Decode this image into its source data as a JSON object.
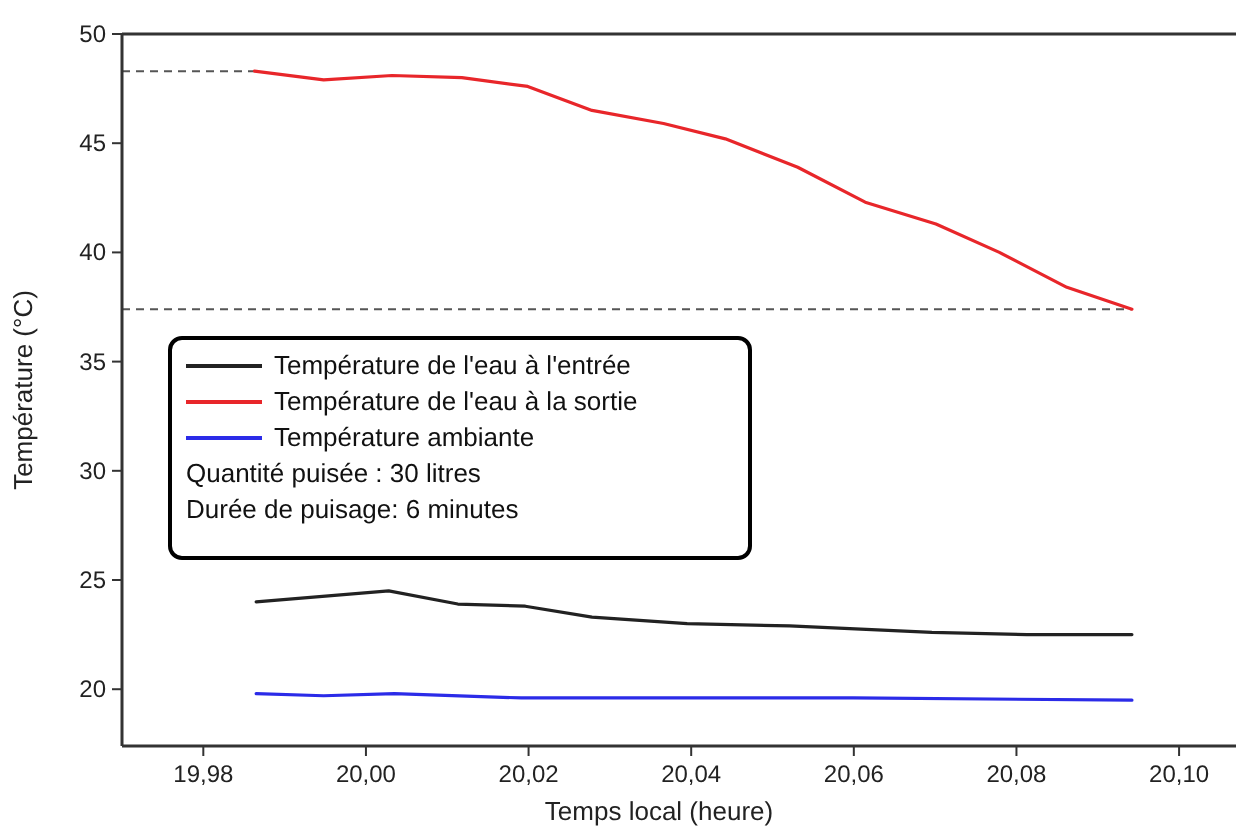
{
  "chart_data": {
    "type": "line",
    "xlabel": "Temps local (heure)",
    "ylabel": "Température (°C)",
    "xlim": [
      19.97,
      20.107
    ],
    "ylim": [
      17.4,
      50
    ],
    "xticks": [
      {
        "value": 19.98,
        "label": "19,98"
      },
      {
        "value": 20.0,
        "label": "20,00"
      },
      {
        "value": 20.02,
        "label": "20,02"
      },
      {
        "value": 20.04,
        "label": "20,04"
      },
      {
        "value": 20.06,
        "label": "20,06"
      },
      {
        "value": 20.08,
        "label": "20,08"
      },
      {
        "value": 20.1,
        "label": "20,10"
      }
    ],
    "yticks": [
      20,
      25,
      30,
      35,
      40,
      45,
      50
    ],
    "grid": false,
    "legend": "left",
    "line_style": "solid",
    "marker": "none",
    "series": [
      {
        "name": "Température de l'eau à l'entrée",
        "color": "#222222",
        "x": [
          19.9865,
          20.0028,
          20.0113,
          20.0196,
          20.0278,
          20.0395,
          20.0521,
          20.0696,
          20.0813,
          20.0942
        ],
        "values": [
          24.0,
          24.5,
          23.9,
          23.8,
          23.3,
          23.0,
          22.9,
          22.6,
          22.5,
          22.5
        ]
      },
      {
        "name": "Température de l'eau à la sortie",
        "color": "#e8262a",
        "x": [
          19.9863,
          19.9948,
          20.0032,
          20.0118,
          20.0199,
          20.0278,
          20.0366,
          20.0442,
          20.0531,
          20.0614,
          20.0701,
          20.0779,
          20.0862,
          20.0942
        ],
        "values": [
          48.3,
          47.9,
          48.1,
          48.0,
          47.6,
          46.5,
          45.9,
          45.2,
          43.9,
          42.3,
          41.3,
          40.0,
          38.4,
          37.4
        ]
      },
      {
        "name": "Température ambiante",
        "color": "#2b2be8",
        "x": [
          19.9865,
          19.9948,
          20.0035,
          20.0191,
          20.0395,
          20.051,
          20.0599,
          20.0942
        ],
        "values": [
          19.8,
          19.7,
          19.8,
          19.6,
          19.6,
          19.6,
          19.6,
          19.5
        ]
      }
    ],
    "ref_lines": [
      {
        "axis": "y",
        "value": 48.3,
        "color": "#555555",
        "line_style": "dashed"
      },
      {
        "axis": "y",
        "value": 37.4,
        "color": "#555555",
        "line_style": "dashed"
      }
    ],
    "annotations": [
      "Quantité puisée : 30 litres",
      "Durée de puisage: 6 minutes"
    ]
  }
}
